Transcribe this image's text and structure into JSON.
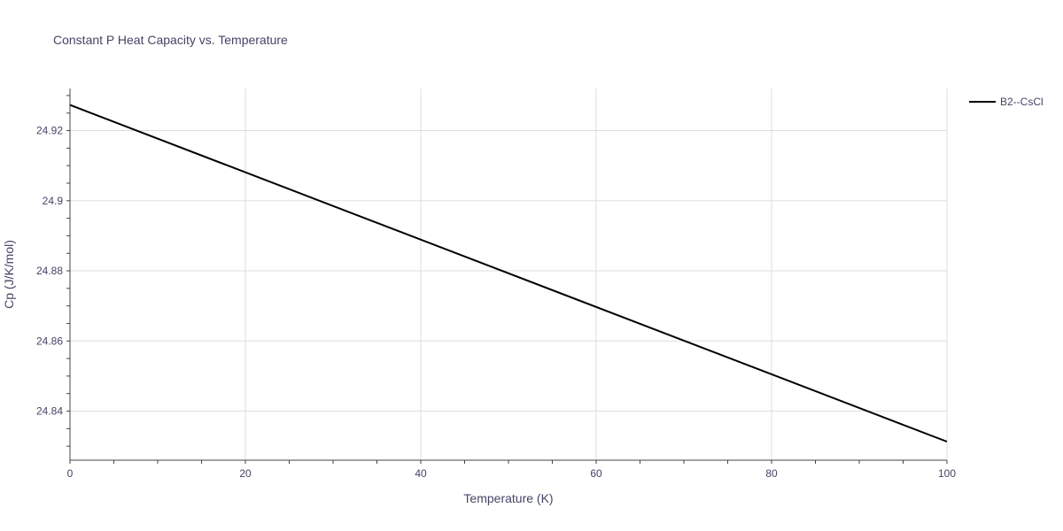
{
  "chart_data": {
    "type": "line",
    "title": "Constant P Heat Capacity vs. Temperature",
    "xlabel": "Temperature (K)",
    "ylabel": "Cp (J/K/mol)",
    "xlim": [
      0,
      100
    ],
    "ylim": [
      24.826,
      24.932
    ],
    "x_ticks": [
      0,
      20,
      40,
      60,
      80,
      100
    ],
    "x_tick_labels": [
      "0",
      "20",
      "40",
      "60",
      "80",
      "100"
    ],
    "y_ticks": [
      24.84,
      24.86,
      24.88,
      24.9,
      24.92
    ],
    "y_tick_labels": [
      "24.84",
      "24.86",
      "24.88",
      "24.9",
      "24.92"
    ],
    "grid": true,
    "legend_position": "top-right",
    "series": [
      {
        "name": "B2--CsCl",
        "color": "#000000",
        "x": [
          0,
          100
        ],
        "y": [
          24.9273,
          24.8313
        ]
      }
    ]
  }
}
